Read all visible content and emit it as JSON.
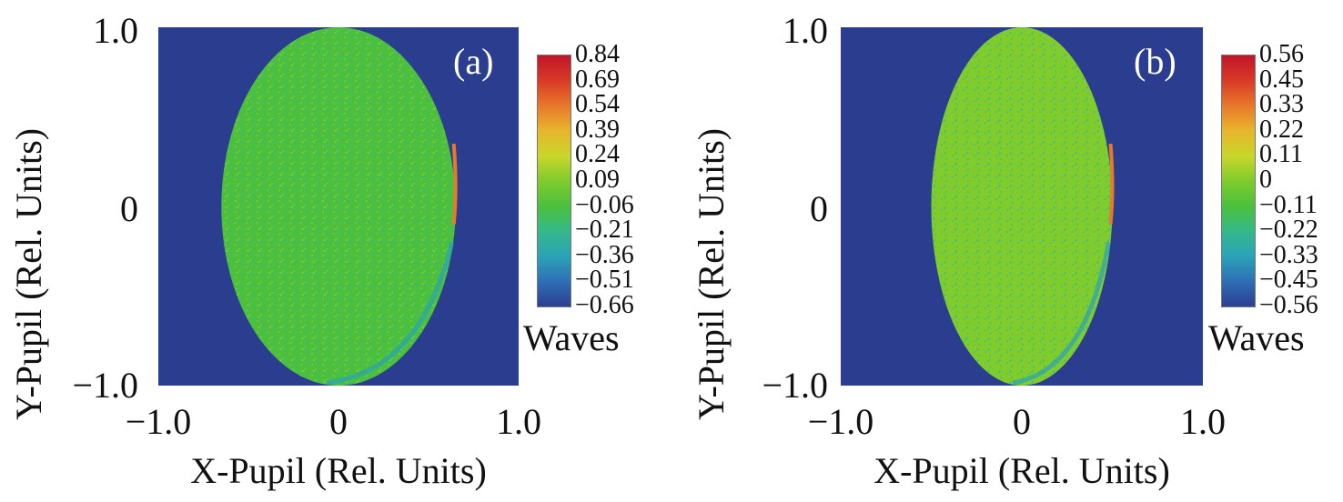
{
  "chart_data": [
    {
      "type": "heatmap",
      "panel_label": "(a)",
      "xlabel": "X-Pupil (Rel. Units)",
      "ylabel": "Y-Pupil (Rel. Units)",
      "xlim": [
        -1.0,
        1.0
      ],
      "ylim": [
        -1.0,
        1.0
      ],
      "x_tick_labels": [
        "−1.0",
        "0",
        "1.0"
      ],
      "y_tick_labels": [
        "1.0",
        "0",
        "−1.0"
      ],
      "pupil_half_width": 0.65,
      "pupil_half_height": 1.0,
      "pupil_mean_value": -0.1,
      "colorbar_label": "Waves",
      "colorbar_ticks": [
        "0.84",
        "0.69",
        "0.54",
        "0.39",
        "0.24",
        "0.09",
        "−0.06",
        "−0.21",
        "−0.36",
        "−0.51",
        "−0.66"
      ],
      "colorbar_range": [
        -0.66,
        0.84
      ]
    },
    {
      "type": "heatmap",
      "panel_label": "(b)",
      "xlabel": "X-Pupil (Rel. Units)",
      "ylabel": "Y-Pupil (Rel. Units)",
      "xlim": [
        -1.0,
        1.0
      ],
      "ylim": [
        -1.0,
        1.0
      ],
      "x_tick_labels": [
        "−1.0",
        "0",
        "1.0"
      ],
      "y_tick_labels": [
        "1.0",
        "0",
        "−1.0"
      ],
      "pupil_half_width": 0.5,
      "pupil_half_height": 1.0,
      "pupil_mean_value": -0.05,
      "colorbar_label": "Waves",
      "colorbar_ticks": [
        "0.56",
        "0.45",
        "0.33",
        "0.22",
        "0.11",
        "0",
        "−0.11",
        "−0.22",
        "−0.33",
        "−0.45",
        "−0.56"
      ],
      "colorbar_range": [
        -0.56,
        0.56
      ]
    }
  ],
  "colormap": [
    "#2b3f92",
    "#2f6fb5",
    "#2aa3b8",
    "#34b98a",
    "#4cc03c",
    "#7fcc2c",
    "#c9d62a",
    "#e7b62b",
    "#e8782a",
    "#d83a26",
    "#c3142a"
  ],
  "background_color": "#2a3d8f"
}
